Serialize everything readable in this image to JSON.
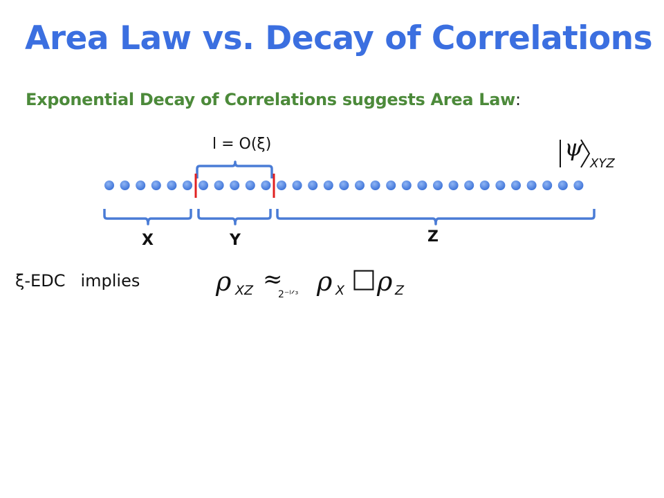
{
  "title": "Area Law vs. Decay of Correlations",
  "subtitle": {
    "text": "Exponential Decay of Correlations suggests Area Law",
    "colon": ":"
  },
  "brace_top_label": "l = O(ξ)",
  "groups": [
    "X",
    "Y",
    "Z"
  ],
  "ket": {
    "symbol": "ψ",
    "subscript": "XYZ"
  },
  "implies_line": {
    "left": "ξ-EDC",
    "right": "implies"
  },
  "formula": {
    "rho": "ρ",
    "sub_xz": "XZ",
    "approx": "≈",
    "approx_sub": "2⁻ˡᐟᶟ",
    "sub_x": "X",
    "missing_glyph": "□",
    "sub_z": "Z"
  },
  "colors": {
    "title": "#3b6fe0",
    "subtitle": "#4c8a3a",
    "dot": "#5b8fe6",
    "brace": "#4a7cd6",
    "cut": "#e02020"
  }
}
